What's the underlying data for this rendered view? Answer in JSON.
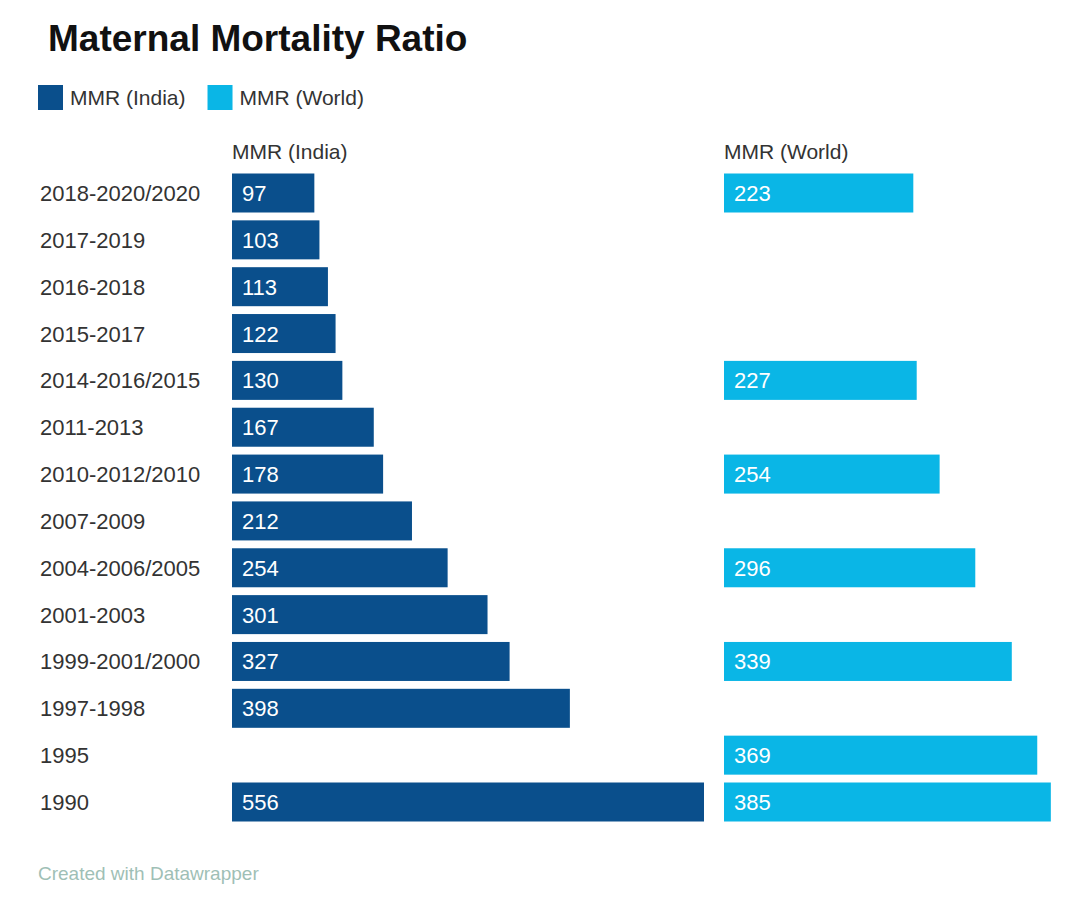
{
  "chart_data": {
    "type": "bar",
    "orientation": "horizontal",
    "title": "Maternal Mortality Ratio",
    "categories": [
      "2018-2020/2020",
      "2017-2019",
      "2016-2018",
      "2015-2017",
      "2014-2016/2015",
      "2011-2013",
      "2010-2012/2010",
      "2007-2009",
      "2004-2006/2005",
      "2001-2003",
      "1999-2001/2000",
      "1997-1998",
      "1995",
      "1990"
    ],
    "series": [
      {
        "name": "MMR (India)",
        "color": "#0a4f8c",
        "values": [
          97,
          103,
          113,
          122,
          130,
          167,
          178,
          212,
          254,
          301,
          327,
          398,
          null,
          556
        ]
      },
      {
        "name": "MMR (World)",
        "color": "#0ab6e6",
        "values": [
          223,
          null,
          null,
          null,
          227,
          null,
          254,
          null,
          296,
          null,
          339,
          null,
          369,
          385
        ]
      }
    ],
    "xlim": [
      0,
      556
    ],
    "data_labels": true,
    "tick_labels": "y",
    "legend": "top-left",
    "annotations": [
      "Created with Datawrapper"
    ]
  }
}
